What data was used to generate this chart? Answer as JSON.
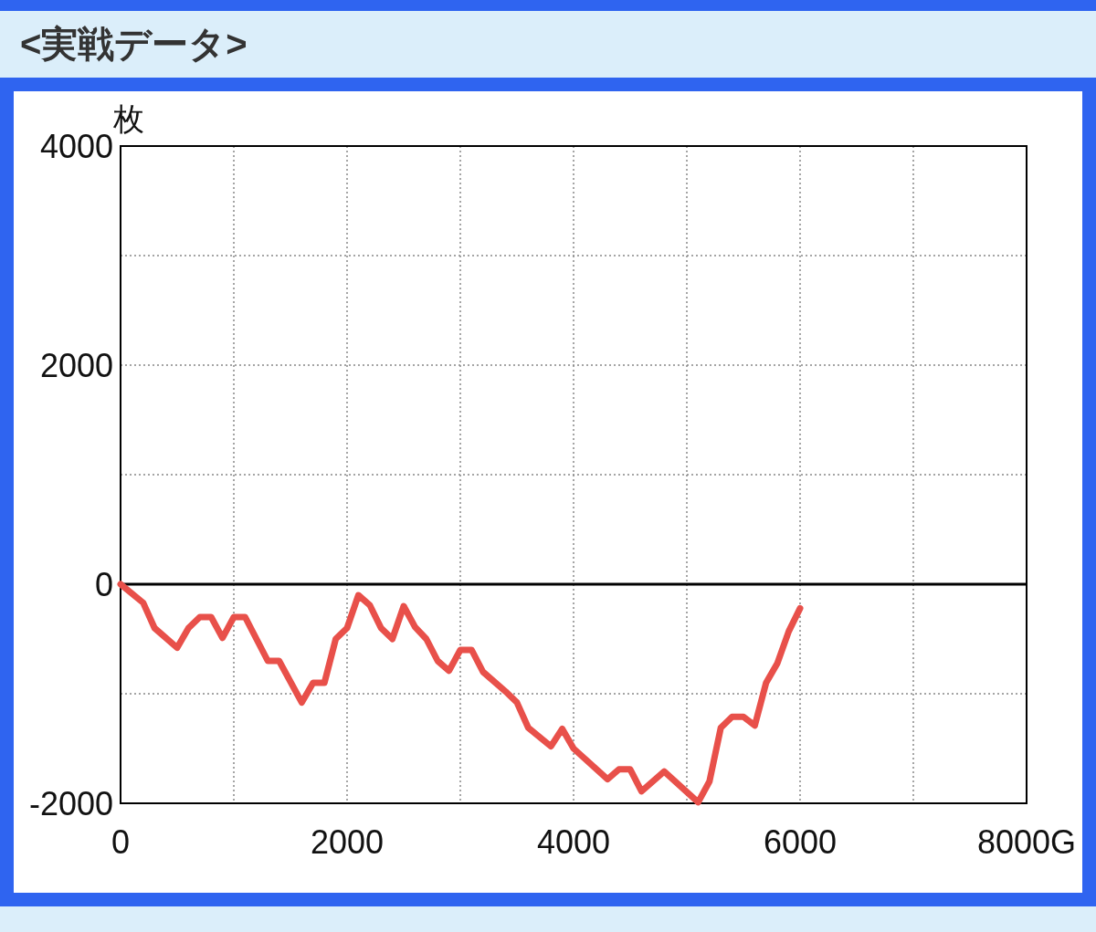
{
  "chart_data": {
    "type": "line",
    "title": "<実戦データ>",
    "ylabel": "枚",
    "x": [
      0,
      200,
      300,
      500,
      600,
      700,
      800,
      900,
      1000,
      1100,
      1200,
      1300,
      1400,
      1600,
      1700,
      1800,
      1900,
      2000,
      2100,
      2200,
      2300,
      2400,
      2500,
      2600,
      2700,
      2800,
      2900,
      3000,
      3100,
      3200,
      3400,
      3500,
      3600,
      3800,
      3900,
      4000,
      4300,
      4400,
      4500,
      4600,
      4800,
      5100,
      5200,
      5300,
      5400,
      5500,
      5600,
      5700,
      5800,
      5900,
      6000
    ],
    "series": [
      {
        "color": "#e8504a",
        "values": [
          0,
          -170,
          -400,
          -580,
          -400,
          -300,
          -300,
          -490,
          -300,
          -300,
          -500,
          -700,
          -700,
          -1080,
          -900,
          -900,
          -500,
          -400,
          -100,
          -190,
          -400,
          -500,
          -200,
          -390,
          -500,
          -700,
          -790,
          -600,
          -600,
          -800,
          -980,
          -1080,
          -1310,
          -1480,
          -1320,
          -1500,
          -1780,
          -1690,
          -1690,
          -1890,
          -1710,
          -1990,
          -1800,
          -1310,
          -1210,
          -1210,
          -1290,
          -900,
          -720,
          -430,
          -220
        ]
      }
    ],
    "xlim": [
      0,
      8000
    ],
    "ylim": [
      -2000,
      4000
    ],
    "xticks": [
      0,
      {
        "value": 1000,
        "label": null
      },
      2000,
      {
        "value": 3000,
        "label": null
      },
      4000,
      {
        "value": 5000,
        "label": null
      },
      6000,
      {
        "value": 7000,
        "label": null
      },
      {
        "value": 8000,
        "label": "8000G"
      }
    ],
    "yticks": [
      -2000,
      {
        "value": -1000,
        "label": null
      },
      0,
      {
        "value": 1000,
        "label": null
      },
      2000,
      {
        "value": 3000,
        "label": null
      },
      4000
    ],
    "grid": true,
    "ref_lines": [
      {
        "axis": "y",
        "value": 0,
        "color": "#000000"
      }
    ]
  }
}
